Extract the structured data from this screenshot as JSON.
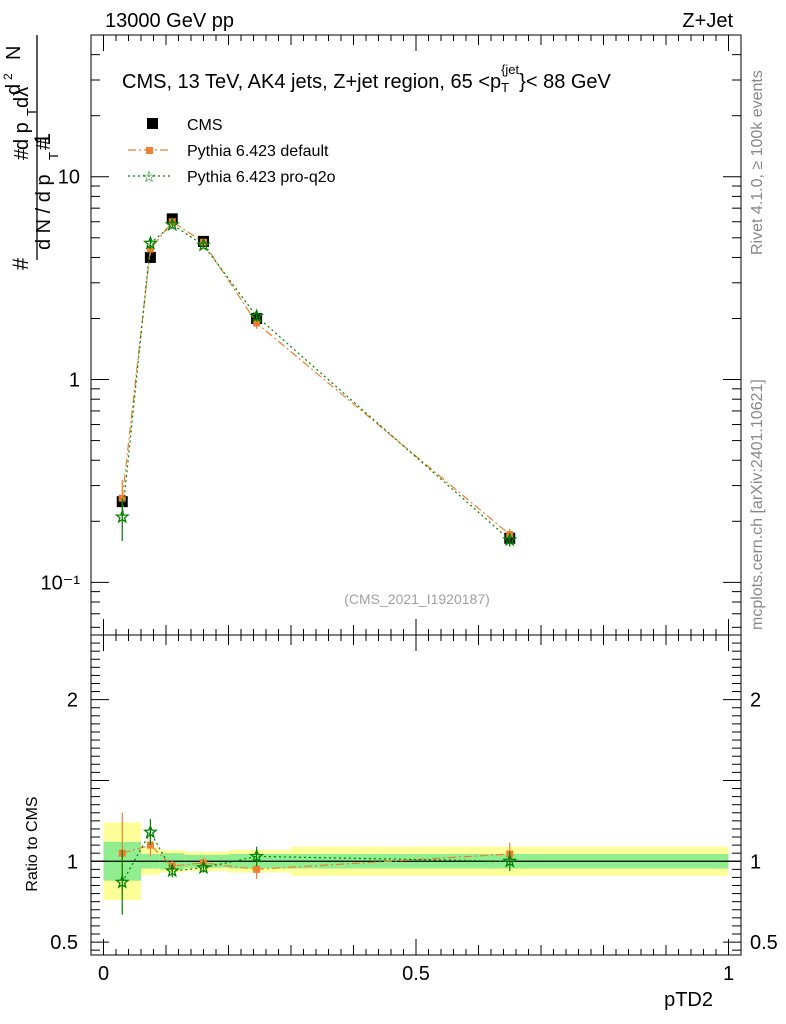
{
  "header": {
    "left": "13000 GeV pp",
    "right": "Z+Jet"
  },
  "side_labels": {
    "rivet": "Rivet 4.1.0, ≥ 100k events",
    "mcplots": "mcplots.cern.ch [arXiv:2401.10621]"
  },
  "chart_data": {
    "type": "line",
    "title": "CMS, 13 TeV, AK4 jets, Z+jet region, 65 <p_T^{jet}< 88 GeV",
    "title_parts": {
      "main": "CMS, 13 TeV, AK4 jets, Z+jet region, 65 <p",
      "sub": "T",
      "sup": "{jet",
      "tail": "}< 88 GeV"
    },
    "analysis_tag": "(CMS_2021_I1920187)",
    "xlabel": "pTD2",
    "ylabel": "1/(dN/dp_T) d²N/(dp_T dλ)",
    "ratio_ylabel": "Ratio to CMS",
    "xlim": [
      -0.02,
      1.02
    ],
    "ylim": [
      0.055,
      50
    ],
    "yscale": "log",
    "ratio_ylim": [
      0.42,
      2.4
    ],
    "x_ticks": [
      "0",
      "0.5",
      "1"
    ],
    "y_ticks_main": [
      "10⁻¹",
      "1",
      "10"
    ],
    "y_ticks_ratio": [
      "0.5",
      "1",
      "2"
    ],
    "bins": [
      [
        0.0,
        0.06
      ],
      [
        0.06,
        0.09
      ],
      [
        0.09,
        0.13
      ],
      [
        0.13,
        0.2
      ],
      [
        0.2,
        0.3
      ],
      [
        0.3,
        1.0
      ]
    ],
    "x": [
      0.03,
      0.075,
      0.11,
      0.16,
      0.245,
      0.65
    ],
    "legend": [
      "CMS",
      "Pythia 6.423 default",
      "Pythia 6.423 pro-q2o"
    ],
    "series": [
      {
        "name": "CMS",
        "color": "#000000",
        "marker": "square",
        "values": [
          0.25,
          4.0,
          6.2,
          4.8,
          2.0,
          0.165
        ],
        "errors": [
          0.02,
          0.25,
          0.3,
          0.2,
          0.1,
          0.012
        ]
      },
      {
        "name": "Pythia 6.423 default",
        "color": "#ee7f2f",
        "marker": "square-small",
        "dash": "8,3,2,3",
        "values": [
          0.26,
          4.4,
          6.0,
          4.75,
          1.9,
          0.172
        ],
        "errors": [
          0.06,
          0.3,
          0.2,
          0.15,
          0.12,
          0.012
        ]
      },
      {
        "name": "Pythia 6.423 pro-q2o",
        "color": "#008000",
        "marker": "star",
        "dash": "2,3",
        "values": [
          0.21,
          4.7,
          5.8,
          4.6,
          2.05,
          0.162
        ],
        "errors": [
          0.05,
          0.3,
          0.25,
          0.15,
          0.12,
          0.012
        ]
      }
    ],
    "ratio": {
      "band_inner": [
        0.12,
        0.045,
        0.05,
        0.04,
        0.045,
        0.045
      ],
      "band_outer": [
        0.24,
        0.085,
        0.07,
        0.06,
        0.07,
        0.09
      ],
      "series": [
        {
          "name": "Pythia 6.423 default",
          "values": [
            1.05,
            1.1,
            0.97,
            0.99,
            0.95,
            1.045
          ],
          "errors": [
            0.25,
            0.07,
            0.04,
            0.03,
            0.06,
            0.07
          ]
        },
        {
          "name": "Pythia 6.423 pro-q2o",
          "values": [
            0.87,
            1.18,
            0.94,
            0.96,
            1.03,
            1.0
          ],
          "errors": [
            0.2,
            0.08,
            0.04,
            0.03,
            0.06,
            0.06
          ]
        }
      ]
    },
    "colors": {
      "band_inner": "#90ee90",
      "band_outer": "#ffff9a"
    }
  }
}
